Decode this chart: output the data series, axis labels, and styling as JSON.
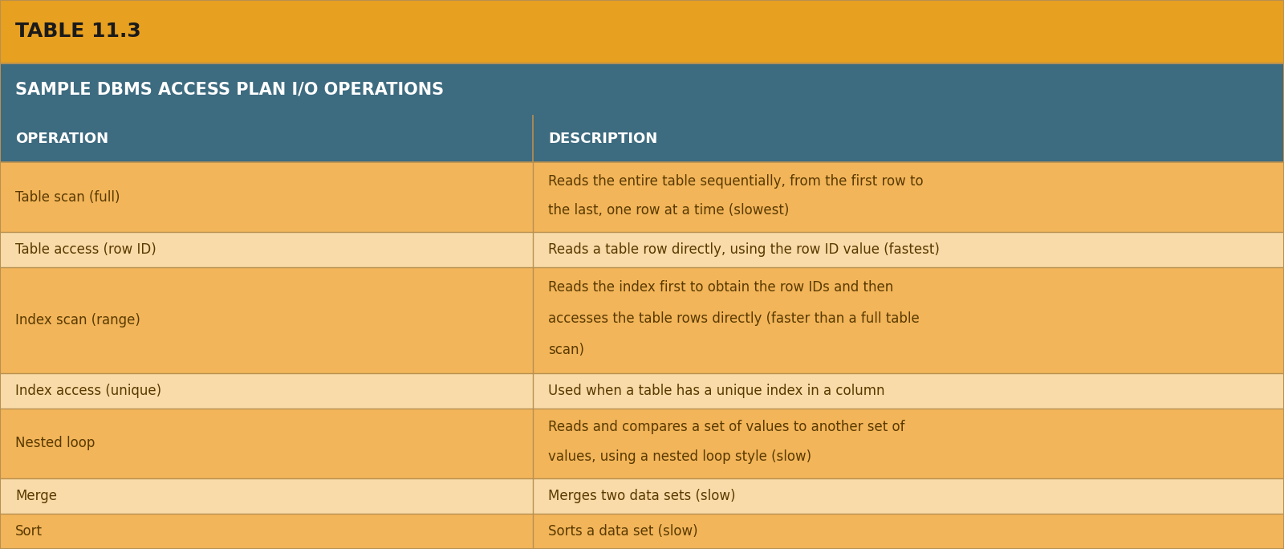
{
  "title": "TABLE 11.3",
  "subtitle": "SAMPLE DBMS ACCESS PLAN I/O OPERATIONS",
  "col_headers": [
    "OPERATION",
    "DESCRIPTION"
  ],
  "rows": [
    [
      "Table scan (full)",
      "Reads the entire table sequentially, from the first row to\nthe last, one row at a time (slowest)"
    ],
    [
      "Table access (row ID)",
      "Reads a table row directly, using the row ID value (fastest)"
    ],
    [
      "Index scan (range)",
      "Reads the index first to obtain the row IDs and then\naccesses the table rows directly (faster than a full table\nscan)"
    ],
    [
      "Index access (unique)",
      "Used when a table has a unique index in a column"
    ],
    [
      "Nested loop",
      "Reads and compares a set of values to another set of\nvalues, using a nested loop style (slow)"
    ],
    [
      "Merge",
      "Merges two data sets (slow)"
    ],
    [
      "Sort",
      "Sorts a data set (slow)"
    ]
  ],
  "title_bg": "#E8A020",
  "subtitle_bg": "#3D6B80",
  "header_bg": "#3D6B80",
  "row_bg_dark": "#F2B55A",
  "row_bg_light": "#F8DBA8",
  "title_color": "#1A1A1A",
  "subtitle_color": "#FFFFFF",
  "header_color": "#FFFFFF",
  "row_text_color": "#5A3A00",
  "border_color": "#B89050",
  "col_split": 0.415,
  "title_fontsize": 18,
  "subtitle_fontsize": 15,
  "header_fontsize": 13,
  "row_fontsize": 12,
  "row_bg_pattern": [
    1,
    0,
    1,
    0,
    1,
    0,
    1
  ]
}
